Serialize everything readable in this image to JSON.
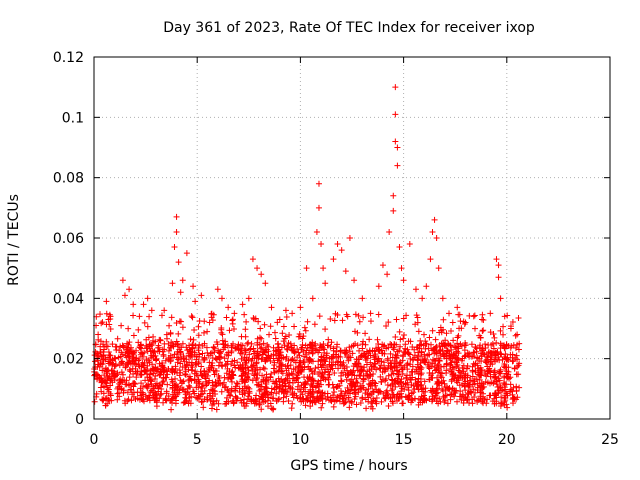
{
  "chart_data": {
    "type": "scatter",
    "title": "Day 361 of 2023, Rate Of TEC Index for receiver ixop",
    "xlabel": "GPS time / hours",
    "ylabel": "ROTI / TECUs",
    "xlim": [
      0,
      25
    ],
    "ylim": [
      0,
      0.12
    ],
    "x_ticks": [
      "0",
      "5",
      "10",
      "15",
      "20",
      "25"
    ],
    "y_ticks": [
      "0",
      "0.02",
      "0.04",
      "0.06",
      "0.08",
      "0.1",
      "0.12"
    ],
    "grid": true,
    "legend": "none",
    "marker": "+",
    "color": "#ff0000",
    "data_extent_hours": [
      0,
      20.6
    ],
    "baseline_band": [
      0.005,
      0.025
    ],
    "points": [
      [
        0.1,
        0.031
      ],
      [
        0.2,
        0.028
      ],
      [
        0.3,
        0.024
      ],
      [
        0.6,
        0.039
      ],
      [
        0.7,
        0.033
      ],
      [
        0.8,
        0.034
      ],
      [
        1.4,
        0.046
      ],
      [
        1.5,
        0.041
      ],
      [
        1.7,
        0.043
      ],
      [
        1.9,
        0.038
      ],
      [
        2.2,
        0.034
      ],
      [
        2.4,
        0.038
      ],
      [
        2.6,
        0.04
      ],
      [
        2.8,
        0.036
      ],
      [
        3.4,
        0.036
      ],
      [
        3.8,
        0.045
      ],
      [
        3.9,
        0.057
      ],
      [
        4.0,
        0.062
      ],
      [
        4.0,
        0.067
      ],
      [
        4.1,
        0.052
      ],
      [
        4.2,
        0.042
      ],
      [
        4.3,
        0.046
      ],
      [
        4.5,
        0.055
      ],
      [
        4.8,
        0.044
      ],
      [
        4.9,
        0.039
      ],
      [
        5.2,
        0.041
      ],
      [
        5.6,
        0.032
      ],
      [
        6.0,
        0.043
      ],
      [
        6.2,
        0.04
      ],
      [
        6.5,
        0.037
      ],
      [
        6.8,
        0.035
      ],
      [
        7.2,
        0.038
      ],
      [
        7.5,
        0.04
      ],
      [
        7.7,
        0.053
      ],
      [
        7.9,
        0.05
      ],
      [
        8.1,
        0.048
      ],
      [
        8.3,
        0.045
      ],
      [
        8.6,
        0.037
      ],
      [
        9.0,
        0.033
      ],
      [
        9.3,
        0.036
      ],
      [
        9.6,
        0.035
      ],
      [
        10.0,
        0.037
      ],
      [
        10.3,
        0.05
      ],
      [
        10.6,
        0.04
      ],
      [
        10.8,
        0.062
      ],
      [
        10.9,
        0.07
      ],
      [
        10.9,
        0.078
      ],
      [
        11.0,
        0.058
      ],
      [
        11.1,
        0.05
      ],
      [
        11.2,
        0.045
      ],
      [
        11.6,
        0.053
      ],
      [
        11.8,
        0.058
      ],
      [
        12.0,
        0.056
      ],
      [
        12.2,
        0.049
      ],
      [
        12.4,
        0.06
      ],
      [
        12.6,
        0.046
      ],
      [
        13.0,
        0.04
      ],
      [
        13.4,
        0.035
      ],
      [
        13.8,
        0.044
      ],
      [
        14.0,
        0.051
      ],
      [
        14.2,
        0.048
      ],
      [
        14.3,
        0.062
      ],
      [
        14.5,
        0.069
      ],
      [
        14.5,
        0.074
      ],
      [
        14.6,
        0.092
      ],
      [
        14.6,
        0.101
      ],
      [
        14.6,
        0.11
      ],
      [
        14.7,
        0.09
      ],
      [
        14.7,
        0.084
      ],
      [
        14.8,
        0.057
      ],
      [
        14.9,
        0.05
      ],
      [
        15.0,
        0.046
      ],
      [
        15.3,
        0.058
      ],
      [
        15.6,
        0.043
      ],
      [
        15.9,
        0.04
      ],
      [
        16.1,
        0.044
      ],
      [
        16.3,
        0.053
      ],
      [
        16.4,
        0.062
      ],
      [
        16.5,
        0.066
      ],
      [
        16.6,
        0.06
      ],
      [
        16.7,
        0.05
      ],
      [
        16.9,
        0.04
      ],
      [
        17.2,
        0.035
      ],
      [
        17.6,
        0.037
      ],
      [
        18.0,
        0.032
      ],
      [
        18.4,
        0.034
      ],
      [
        18.8,
        0.033
      ],
      [
        19.2,
        0.035
      ],
      [
        19.5,
        0.053
      ],
      [
        19.6,
        0.051
      ],
      [
        19.6,
        0.047
      ],
      [
        19.7,
        0.04
      ],
      [
        19.9,
        0.034
      ],
      [
        20.2,
        0.03
      ],
      [
        20.5,
        0.028
      ],
      [
        20.6,
        0.025
      ]
    ]
  }
}
